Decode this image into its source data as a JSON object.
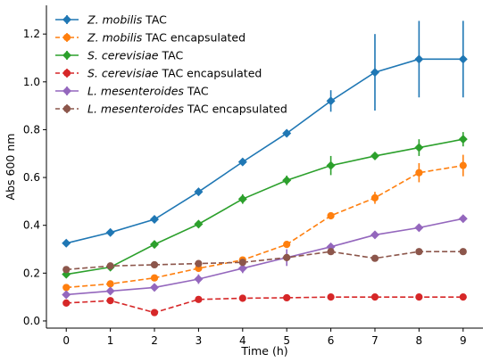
{
  "chart_data": {
    "type": "line",
    "xlabel": "Time (h)",
    "ylabel": "Abs 600 nm",
    "x": [
      0,
      1,
      2,
      3,
      4,
      5,
      6,
      7,
      8,
      9
    ],
    "xlim": [
      -0.45,
      9.45
    ],
    "ylim": [
      -0.03,
      1.32
    ],
    "xticks": [
      "0",
      "1",
      "2",
      "3",
      "4",
      "5",
      "6",
      "7",
      "8",
      "9"
    ],
    "yticks": [
      "0.0",
      "0.2",
      "0.4",
      "0.6",
      "0.8",
      "1.0",
      "1.2"
    ],
    "grid": false,
    "legend_position": "top-left",
    "series": [
      {
        "name_parts": [
          {
            "text": "Z. mobilis",
            "italic": true
          },
          {
            "text": " TAC",
            "italic": false
          }
        ],
        "color": "#1f77b4",
        "dashed": false,
        "marker": "diamond",
        "values": [
          0.325,
          0.37,
          0.425,
          0.54,
          0.665,
          0.785,
          0.92,
          1.04,
          1.095,
          1.095
        ],
        "errors": [
          0.01,
          0.01,
          0.01,
          0.01,
          0.01,
          0.01,
          0.045,
          0.16,
          0.16,
          0.16
        ]
      },
      {
        "name_parts": [
          {
            "text": "Z. mobilis",
            "italic": true
          },
          {
            "text": " TAC encapsulated",
            "italic": false
          }
        ],
        "color": "#ff7f0e",
        "dashed": true,
        "marker": "circle",
        "values": [
          0.14,
          0.155,
          0.18,
          0.22,
          0.255,
          0.32,
          0.44,
          0.515,
          0.62,
          0.65
        ],
        "errors": [
          0.01,
          0.01,
          0.01,
          0.01,
          0.01,
          0.01,
          0.01,
          0.025,
          0.04,
          0.045
        ]
      },
      {
        "name_parts": [
          {
            "text": "S. cerevisiae",
            "italic": true
          },
          {
            "text": " TAC",
            "italic": false
          }
        ],
        "color": "#2ca02c",
        "dashed": false,
        "marker": "diamond",
        "values": [
          0.195,
          0.225,
          0.32,
          0.405,
          0.51,
          0.588,
          0.65,
          0.69,
          0.725,
          0.76
        ],
        "errors": [
          0.01,
          0.01,
          0.01,
          0.01,
          0.02,
          0.02,
          0.04,
          0.01,
          0.035,
          0.03
        ]
      },
      {
        "name_parts": [
          {
            "text": "S. cerevisiae",
            "italic": true
          },
          {
            "text": " TAC encapsulated",
            "italic": false
          }
        ],
        "color": "#d62728",
        "dashed": true,
        "marker": "circle",
        "values": [
          0.075,
          0.085,
          0.035,
          0.09,
          0.095,
          0.097,
          0.1,
          0.1,
          0.1,
          0.1
        ],
        "errors": [
          0.005,
          0.005,
          0.005,
          0.005,
          0.005,
          0.005,
          0.005,
          0.005,
          0.005,
          0.005
        ]
      },
      {
        "name_parts": [
          {
            "text": "L. mesenteroides",
            "italic": true
          },
          {
            "text": " TAC",
            "italic": false
          }
        ],
        "color": "#9467bd",
        "dashed": false,
        "marker": "diamond",
        "values": [
          0.11,
          0.125,
          0.14,
          0.175,
          0.22,
          0.265,
          0.31,
          0.36,
          0.39,
          0.428
        ],
        "errors": [
          0.01,
          0.01,
          0.01,
          0.02,
          0.02,
          0.035,
          0.01,
          0.01,
          0.01,
          0.01
        ]
      },
      {
        "name_parts": [
          {
            "text": "L. mesenteroides",
            "italic": true
          },
          {
            "text": " TAC encapsulated",
            "italic": false
          }
        ],
        "color": "#8c564b",
        "dashed": true,
        "marker": "circle",
        "values": [
          0.215,
          0.23,
          0.235,
          0.24,
          0.245,
          0.265,
          0.29,
          0.262,
          0.29,
          0.29
        ],
        "errors": [
          0.005,
          0.005,
          0.005,
          0.005,
          0.01,
          0.01,
          0.01,
          0.01,
          0.005,
          0.005
        ]
      }
    ]
  }
}
